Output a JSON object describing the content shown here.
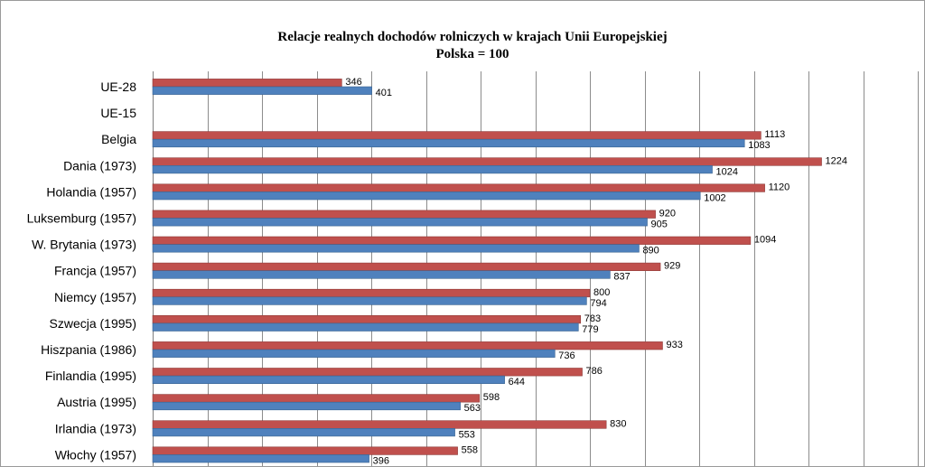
{
  "chart_data": {
    "type": "bar",
    "orientation": "horizontal",
    "title": "Relacje realnych dochodów rolniczych w krajach Unii Europejskiej",
    "subtitle": "Polska = 100",
    "categories": [
      "UE-28",
      "UE-15",
      "Belgia",
      "Dania (1973)",
      "Holandia (1957)",
      "Luksemburg (1957)",
      "W. Brytania (1973)",
      "Francja  (1957)",
      "Niemcy (1957)",
      "Szwecja (1995)",
      "Hiszpania (1986)",
      "Finlandia (1995)",
      "Austria (1995)",
      "Irlandia (1973)",
      "Włochy (1957)"
    ],
    "series": [
      {
        "color": "#c0504d",
        "values": [
          346,
          null,
          1113,
          1224,
          1120,
          920,
          1094,
          929,
          800,
          783,
          933,
          786,
          598,
          830,
          558
        ]
      },
      {
        "color": "#4f81bd",
        "values": [
          401,
          null,
          1083,
          1024,
          1002,
          905,
          890,
          837,
          794,
          779,
          736,
          644,
          563,
          553,
          396
        ]
      }
    ],
    "xlim": [
      0,
      1400
    ],
    "x_gridline_step": 100,
    "grid": true,
    "legend": "none"
  }
}
